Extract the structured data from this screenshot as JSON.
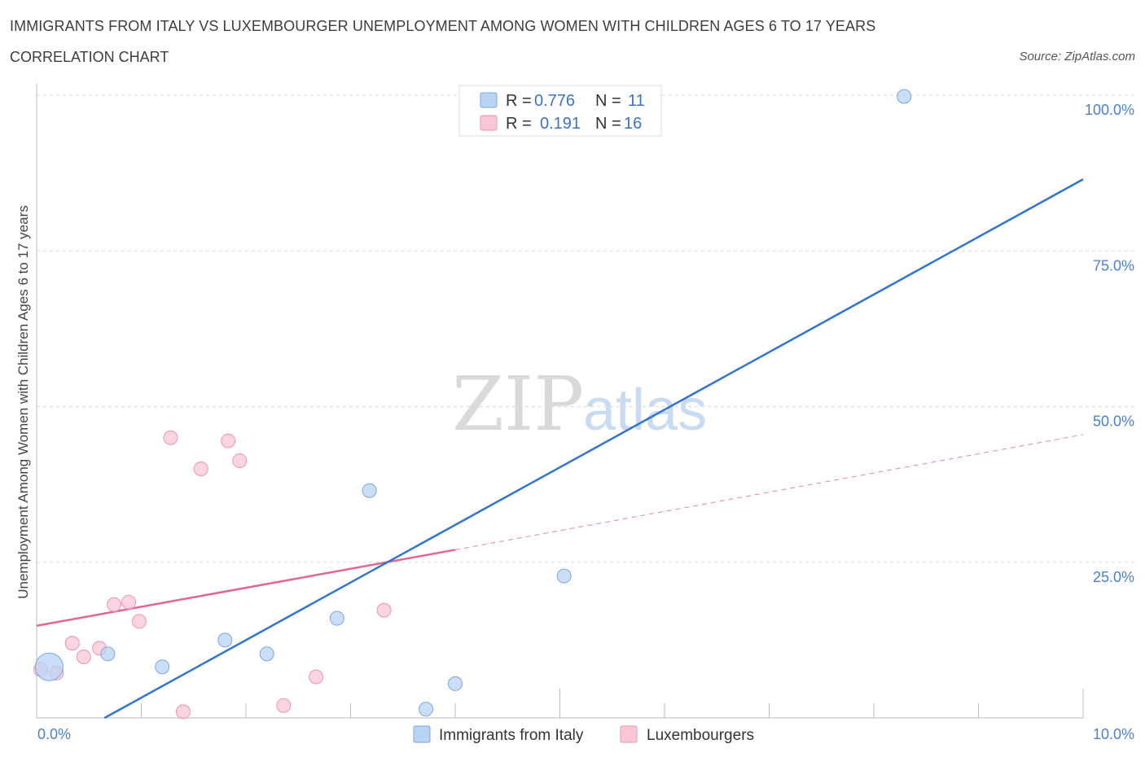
{
  "header": {
    "title": "IMMIGRANTS FROM ITALY VS LUXEMBOURGER UNEMPLOYMENT AMONG WOMEN WITH CHILDREN AGES 6 TO 17 YEARS",
    "subtitle": "CORRELATION CHART",
    "source": "Source: ZipAtlas.com"
  },
  "watermark": {
    "zip": "ZIP",
    "atlas": "atlas"
  },
  "colors": {
    "italy_fill": "#b9d3f5",
    "italy_stroke": "#7aa6e0",
    "italy_line": "#2f74d0",
    "lux_fill": "#f8c6d6",
    "lux_stroke": "#e995b0",
    "lux_line": "#e0668f",
    "grid": "#d8d8d8",
    "axis": "#bbbbbb"
  },
  "chart_data": {
    "type": "scatter",
    "title": "IMMIGRANTS FROM ITALY VS LUXEMBOURGER UNEMPLOYMENT AMONG WOMEN WITH CHILDREN AGES 6 TO 17 YEARS",
    "xlabel": "",
    "ylabel": "Unemployment Among Women with Children Ages 6 to 17 years",
    "xlim": [
      0,
      10
    ],
    "ylim": [
      0,
      100
    ],
    "x_tick_labels": [
      "0.0%",
      "10.0%"
    ],
    "y_ticks": [
      25,
      50,
      75,
      100
    ],
    "y_tick_labels": [
      "25.0%",
      "50.0%",
      "75.0%",
      "100.0%"
    ],
    "grid": true,
    "legend": {
      "placement": "top-center",
      "rows": [
        {
          "r_label": "R =",
          "r_value": "0.776",
          "n_label": "N =",
          "n_value": "11"
        },
        {
          "r_label": "R =",
          "r_value": "0.191",
          "n_label": "N =",
          "n_value": "16"
        }
      ]
    },
    "series": [
      {
        "name": "Immigrants from Italy",
        "R": 0.776,
        "N": 11,
        "points": [
          {
            "x": 0.12,
            "y": 8.2,
            "size": "large"
          },
          {
            "x": 0.68,
            "y": 10.3
          },
          {
            "x": 1.2,
            "y": 8.2
          },
          {
            "x": 1.8,
            "y": 12.5
          },
          {
            "x": 2.2,
            "y": 10.3
          },
          {
            "x": 2.87,
            "y": 16.0
          },
          {
            "x": 3.18,
            "y": 36.5
          },
          {
            "x": 3.72,
            "y": 1.4
          },
          {
            "x": 4.0,
            "y": 5.5
          },
          {
            "x": 5.04,
            "y": 22.8
          },
          {
            "x": 8.29,
            "y": 99.8
          }
        ],
        "trend": {
          "x0": 0.0,
          "y0": -6.0,
          "x1": 10.0,
          "y1": 86.5,
          "style": "solid"
        }
      },
      {
        "name": "Luxembourgers",
        "R": 0.191,
        "N": 16,
        "points": [
          {
            "x": 0.04,
            "y": 7.8
          },
          {
            "x": 0.19,
            "y": 7.2
          },
          {
            "x": 0.34,
            "y": 12.0
          },
          {
            "x": 0.45,
            "y": 9.8
          },
          {
            "x": 0.6,
            "y": 11.2
          },
          {
            "x": 0.74,
            "y": 18.2
          },
          {
            "x": 0.88,
            "y": 18.6
          },
          {
            "x": 0.98,
            "y": 15.5
          },
          {
            "x": 1.28,
            "y": 45.0
          },
          {
            "x": 1.4,
            "y": 1.0
          },
          {
            "x": 1.57,
            "y": 40.0
          },
          {
            "x": 1.83,
            "y": 44.5
          },
          {
            "x": 1.94,
            "y": 41.3
          },
          {
            "x": 2.36,
            "y": 2.0
          },
          {
            "x": 2.67,
            "y": 6.6
          },
          {
            "x": 3.32,
            "y": 17.3
          }
        ],
        "trend": {
          "x0": 0.0,
          "y0": 14.8,
          "x1": 4.0,
          "y1": 27.0,
          "style": "solid",
          "extension": {
            "x1": 10.0,
            "y1": 45.5,
            "style": "dashed"
          }
        }
      }
    ]
  },
  "bottom_legend": {
    "items": [
      {
        "label": "Immigrants from Italy"
      },
      {
        "label": "Luxembourgers"
      }
    ]
  }
}
